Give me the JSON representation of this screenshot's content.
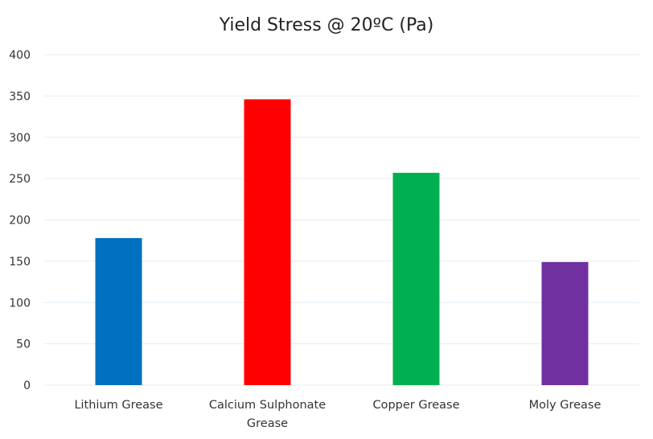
{
  "chart_data": {
    "type": "bar",
    "title": "Yield Stress @ 20ºC (Pa)",
    "xlabel": "",
    "ylabel": "",
    "ylim": [
      0,
      400
    ],
    "yticks": [
      0,
      50,
      100,
      150,
      200,
      250,
      300,
      350,
      400
    ],
    "grid": true,
    "legend": "none",
    "categories": [
      [
        "Lithium Grease"
      ],
      [
        "Calcium Sulphonate",
        "Grease"
      ],
      [
        "Copper Grease"
      ],
      [
        "Moly Grease"
      ]
    ],
    "values": [
      178,
      346,
      257,
      149
    ],
    "colors": [
      "#0070c0",
      "#ff0000",
      "#00b050",
      "#7030a0"
    ]
  }
}
